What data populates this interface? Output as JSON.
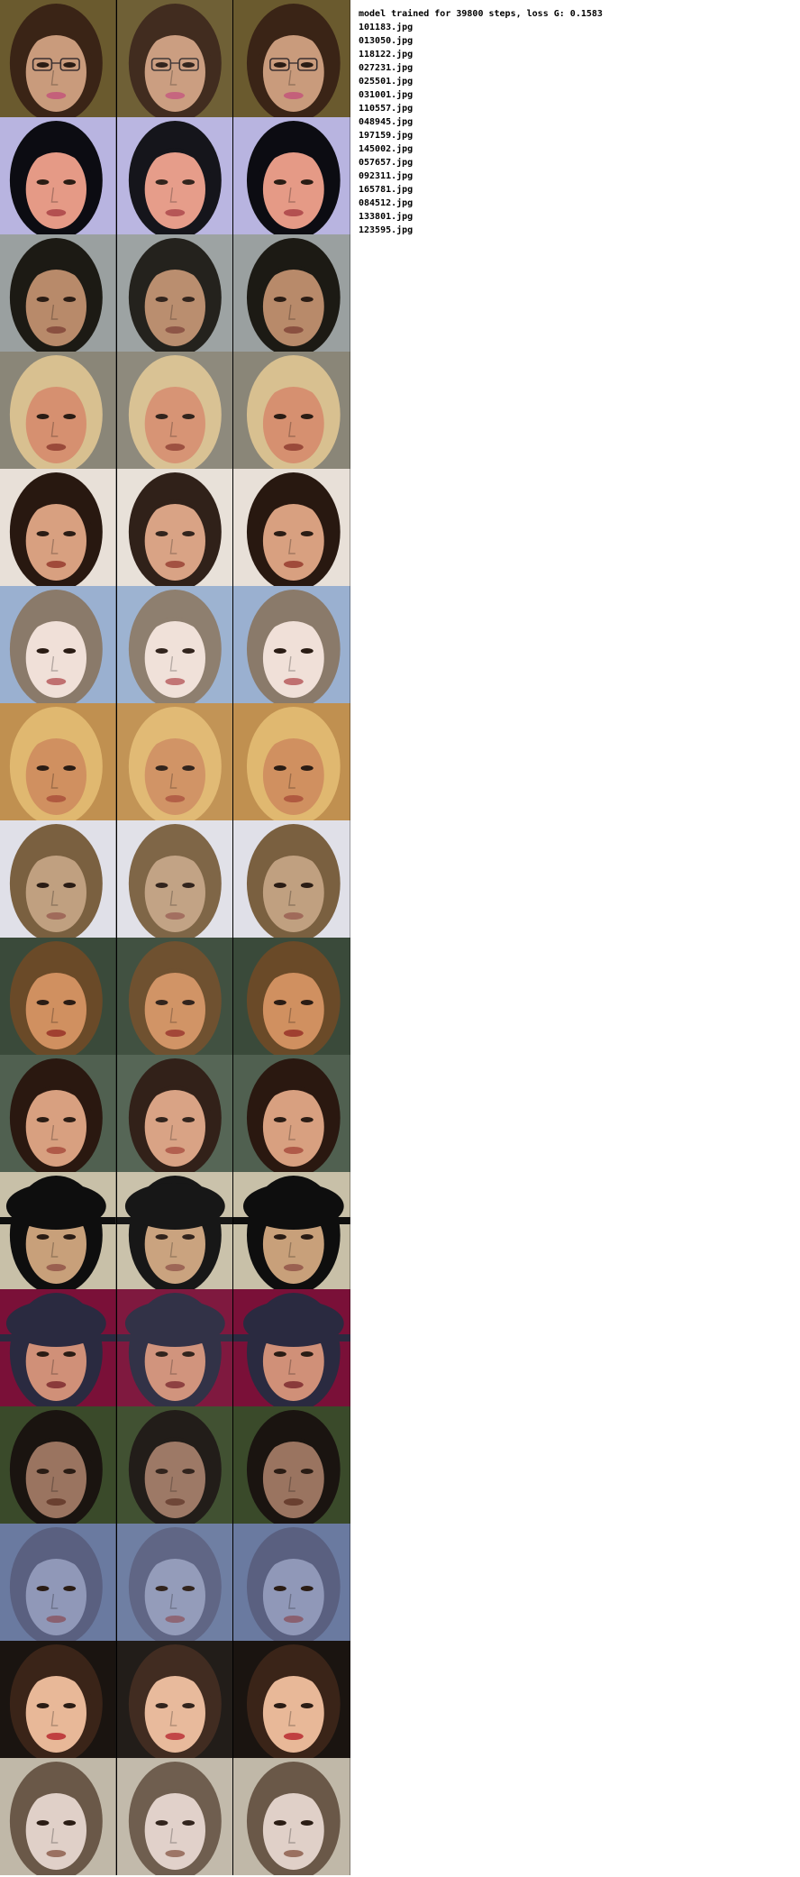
{
  "header": {
    "status": "model trained for 39800 steps, loss G: 0.1583"
  },
  "files": [
    "101183.jpg",
    "013050.jpg",
    "118122.jpg",
    "027231.jpg",
    "025501.jpg",
    "031001.jpg",
    "110557.jpg",
    "048945.jpg",
    "197159.jpg",
    "145002.jpg",
    "057657.jpg",
    "092311.jpg",
    "165781.jpg",
    "084512.jpg",
    "133801.jpg",
    "123595.jpg"
  ],
  "rows": [
    {
      "bg": "#6a5a2e",
      "skin": "#c99b7c",
      "hair": "#3a2416",
      "lips": "#c4607a",
      "glasses": true
    },
    {
      "bg": "#b8b4e0",
      "skin": "#e59a86",
      "hair": "#0c0c12",
      "lips": "#b35050"
    },
    {
      "bg": "#9aa0a0",
      "skin": "#b88a6a",
      "hair": "#1c1a14",
      "lips": "#8a5040"
    },
    {
      "bg": "#8a8678",
      "skin": "#d69070",
      "hair": "#d8c090",
      "lips": "#9a4a3a"
    },
    {
      "bg": "#e8e0d8",
      "skin": "#d8a080",
      "hair": "#281810",
      "lips": "#a04a3a"
    },
    {
      "bg": "#9ab0d0",
      "skin": "#f0e0d8",
      "hair": "#8a7a6a",
      "lips": "#c07070"
    },
    {
      "bg": "#c09050",
      "skin": "#d09060",
      "hair": "#e0b870",
      "lips": "#b05a40"
    },
    {
      "bg": "#e0e0e8",
      "skin": "#c0a080",
      "hair": "#7a6040",
      "lips": "#a06a5a"
    },
    {
      "bg": "#3a4a3a",
      "skin": "#d09060",
      "hair": "#6a4a28",
      "lips": "#a04030"
    },
    {
      "bg": "#506050",
      "skin": "#d8a080",
      "hair": "#2a1810",
      "lips": "#b05a48"
    },
    {
      "bg": "#c8c0a8",
      "skin": "#c8a07a",
      "hair": "#0e0e0e",
      "lips": "#9a6050",
      "hat": true
    },
    {
      "bg": "#7a1038",
      "skin": "#d09078",
      "hair": "#2a2a40",
      "lips": "#8a3a3a",
      "hat": true
    },
    {
      "bg": "#3a4a2a",
      "skin": "#9a7460",
      "hair": "#1a1410",
      "lips": "#6a4030"
    },
    {
      "bg": "#6a7aa0",
      "skin": "#9098b8",
      "hair": "#5a6080",
      "lips": "#8a6070"
    },
    {
      "bg": "#1a1410",
      "skin": "#e8b898",
      "hair": "#3a2418",
      "lips": "#c04040"
    },
    {
      "bg": "#c0b8a8",
      "skin": "#e0d0c8",
      "hair": "#6a5848",
      "lips": "#9a7060"
    }
  ]
}
